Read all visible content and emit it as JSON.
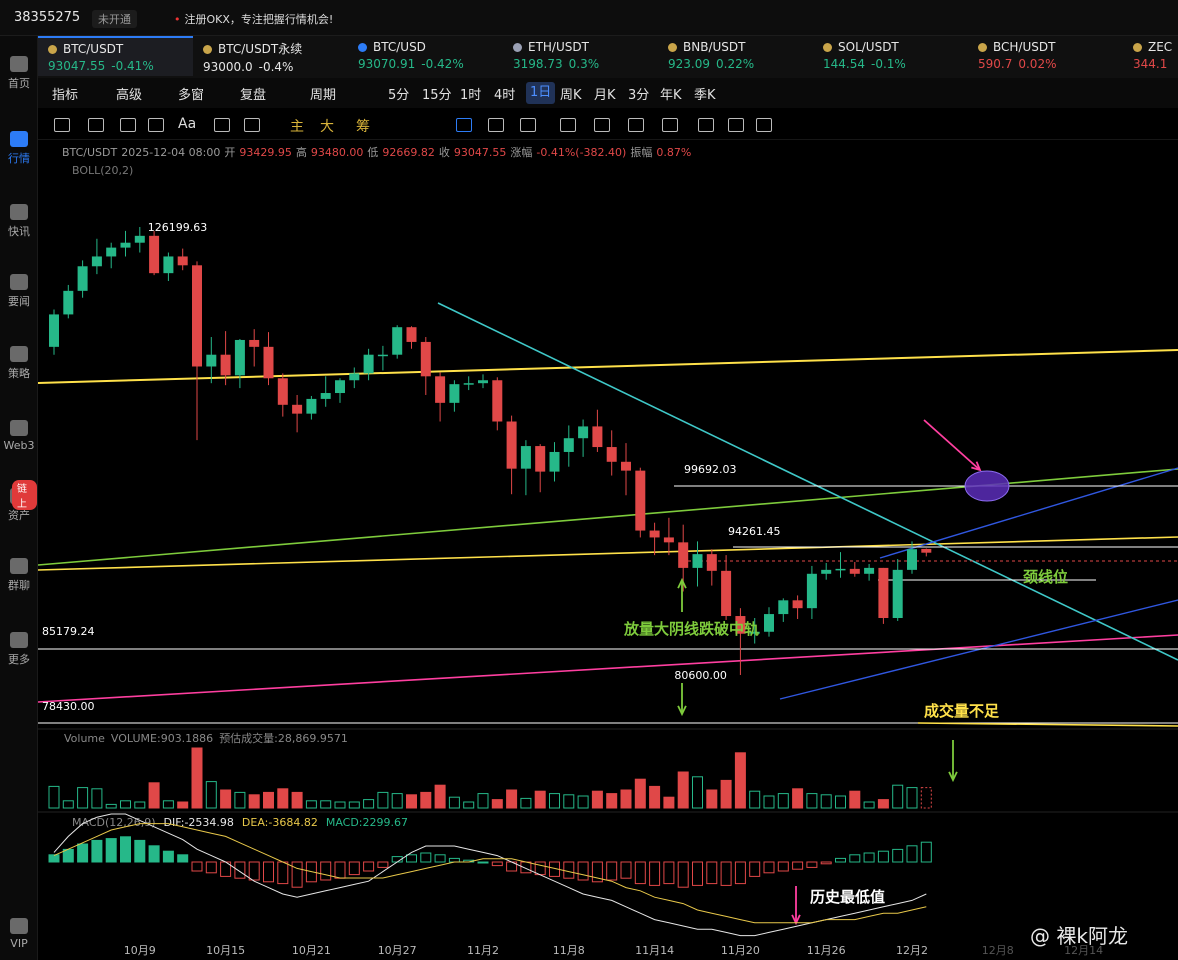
{
  "top": {
    "account": "38355275",
    "vip": "未开通",
    "notice": "注册OKX，专注把握行情机会!"
  },
  "sidebar": [
    {
      "label": "首页",
      "icon": "home-icon"
    },
    {
      "label": "行情",
      "icon": "chart-icon"
    },
    {
      "label": "快讯",
      "icon": "news-icon"
    },
    {
      "label": "要闻",
      "icon": "headline-icon"
    },
    {
      "label": "策略",
      "icon": "robot-icon"
    },
    {
      "label": "Web3",
      "icon": "web3-icon"
    },
    {
      "label": "资产",
      "icon": "wallet-icon"
    },
    {
      "label": "群聊",
      "icon": "chat-icon"
    },
    {
      "label": "更多",
      "icon": "grid-icon"
    },
    {
      "label": "VIP",
      "icon": "vip-icon"
    }
  ],
  "sidebar_badge": "链上",
  "tickers": [
    {
      "name": "BTC/USDT",
      "price": "93047.55",
      "change": "-0.41%",
      "dir": "up"
    },
    {
      "name": "BTC/USDT永续",
      "price": "93000.0",
      "change": "-0.4%",
      "dir": "wt"
    },
    {
      "name": "BTC/USD",
      "price": "93070.91",
      "change": "-0.42%",
      "dir": "up"
    },
    {
      "name": "ETH/USDT",
      "price": "3198.73",
      "change": "0.3%",
      "dir": "up"
    },
    {
      "name": "BNB/USDT",
      "price": "923.09",
      "change": "0.22%",
      "dir": "up"
    },
    {
      "name": "SOL/USDT",
      "price": "144.54",
      "change": "-0.1%",
      "dir": "up"
    },
    {
      "name": "BCH/USDT",
      "price": "590.7",
      "change": "0.02%",
      "dir": "dn"
    },
    {
      "name": "ZEC",
      "price": "344.1",
      "change": "",
      "dir": "dn"
    }
  ],
  "periods": [
    "指标",
    "高级",
    "多窗",
    "复盘",
    "周期",
    "5分",
    "15分",
    "1时",
    "4时",
    "1日",
    "周K",
    "月K",
    "3分",
    "年K",
    "季K"
  ],
  "active_period": "1日",
  "tool_text": [
    "Aa",
    "主",
    "大",
    "筹"
  ],
  "info": {
    "symbol": "BTC/USDT",
    "date": "2025-12-04 08:00",
    "open_label": "开",
    "open": "93429.95",
    "high_label": "高",
    "high": "93480.00",
    "low_label": "低",
    "low": "92669.82",
    "close_label": "收",
    "close": "93047.55",
    "chg_label": "涨幅",
    "chg": "-0.41%(-382.40)",
    "amp_label": "振幅",
    "amp": "0.87%",
    "boll": "BOLL(20,2)"
  },
  "volume_info": {
    "label": "Volume",
    "volume": "VOLUME:903.1886",
    "est": "预估成交量:28,869.9571"
  },
  "macd_info": {
    "label": "MACD(12,26,9)",
    "dif": "DIF:-2534.98",
    "dea": "DEA:-3684.82",
    "macd": "MACD:2299.67"
  },
  "chart_data": {
    "type": "candlestick",
    "title": "BTC/USDT 1日",
    "y_range": [
      75000,
      132000
    ],
    "x_ticks": [
      {
        "label": "10月9",
        "index": 6
      },
      {
        "label": "10月15",
        "index": 12
      },
      {
        "label": "10月21",
        "index": 18
      },
      {
        "label": "10月27",
        "index": 24
      },
      {
        "label": "11月2",
        "index": 30
      },
      {
        "label": "11月8",
        "index": 36
      },
      {
        "label": "11月14",
        "index": 42
      },
      {
        "label": "11月20",
        "index": 48
      },
      {
        "label": "11月26",
        "index": 54
      },
      {
        "label": "12月2",
        "index": 60
      },
      {
        "label": "12月8",
        "index": 66
      },
      {
        "label": "12月14",
        "index": 72
      }
    ],
    "candles": [
      [
        114000,
        117800,
        113200,
        117300
      ],
      [
        117300,
        120300,
        116900,
        119700
      ],
      [
        119700,
        122800,
        119000,
        122200
      ],
      [
        122200,
        125000,
        121400,
        123200
      ],
      [
        123200,
        124600,
        122000,
        124100
      ],
      [
        124100,
        125800,
        123200,
        124600
      ],
      [
        124600,
        126199.63,
        123600,
        125300
      ],
      [
        125300,
        125800,
        121300,
        121500
      ],
      [
        121500,
        123600,
        120700,
        123200
      ],
      [
        123200,
        124000,
        121800,
        122300
      ],
      [
        122300,
        122700,
        104500,
        112000
      ],
      [
        112000,
        115000,
        110300,
        113200
      ],
      [
        113200,
        115600,
        110100,
        111100
      ],
      [
        111100,
        114800,
        109800,
        114700
      ],
      [
        114700,
        115800,
        112000,
        114000
      ],
      [
        114000,
        115500,
        110100,
        110800
      ],
      [
        110800,
        111300,
        106900,
        108100
      ],
      [
        108100,
        109100,
        105300,
        107200
      ],
      [
        107200,
        109000,
        106600,
        108700
      ],
      [
        108700,
        111000,
        107900,
        109300
      ],
      [
        109300,
        110800,
        108300,
        110600
      ],
      [
        110600,
        111900,
        109800,
        111300
      ],
      [
        111300,
        113800,
        110600,
        113200
      ],
      [
        113200,
        114100,
        111600,
        113200
      ],
      [
        113200,
        116200,
        112800,
        116000
      ],
      [
        116000,
        116100,
        113800,
        114500
      ],
      [
        114500,
        115000,
        109100,
        111000
      ],
      [
        111000,
        111400,
        106400,
        108300
      ],
      [
        108300,
        110600,
        107400,
        110200
      ],
      [
        110200,
        111000,
        109600,
        110300
      ],
      [
        110300,
        111200,
        109800,
        110600
      ],
      [
        110600,
        110900,
        105500,
        106400
      ],
      [
        106400,
        107000,
        99000,
        101600
      ],
      [
        101600,
        104500,
        98900,
        103900
      ],
      [
        103900,
        104100,
        99200,
        101300
      ],
      [
        101300,
        104300,
        100300,
        103300
      ],
      [
        103300,
        106000,
        101800,
        104700
      ],
      [
        104700,
        106600,
        102800,
        105900
      ],
      [
        105900,
        107600,
        103300,
        103800
      ],
      [
        103800,
        105500,
        100900,
        102300
      ],
      [
        102300,
        104200,
        98900,
        101400
      ],
      [
        101400,
        101700,
        94600,
        95300
      ],
      [
        95300,
        96100,
        92800,
        94600
      ],
      [
        94600,
        96600,
        92800,
        94100
      ],
      [
        94100,
        95900,
        89100,
        91500
      ],
      [
        91500,
        94200,
        89600,
        92900
      ],
      [
        92900,
        93400,
        89700,
        91200
      ],
      [
        91200,
        92800,
        86200,
        86600
      ],
      [
        86600,
        87400,
        80600.0,
        84800
      ],
      [
        84800,
        86400,
        83800,
        85000
      ],
      [
        85000,
        87500,
        84500,
        86800
      ],
      [
        86800,
        88400,
        86000,
        88200
      ],
      [
        88200,
        88700,
        86300,
        87400
      ],
      [
        87400,
        91700,
        86300,
        90900
      ],
      [
        90900,
        92000,
        90300,
        91300
      ],
      [
        91300,
        93100,
        90500,
        91400
      ],
      [
        91400,
        92100,
        90600,
        90900
      ],
      [
        90900,
        91900,
        90200,
        91500
      ],
      [
        91500,
        91500,
        85800,
        86400
      ],
      [
        86400,
        92400,
        86100,
        91300
      ],
      [
        91300,
        94200,
        90900,
        93400
      ],
      [
        93429.95,
        93480.0,
        92669.82,
        93047.55
      ]
    ],
    "volumes": [
      18,
      6,
      17,
      16,
      3,
      6,
      5,
      21,
      6,
      5,
      50,
      22,
      15,
      13,
      11,
      13,
      16,
      13,
      6,
      6,
      5,
      5,
      7,
      13,
      12,
      11,
      13,
      19,
      9,
      5,
      12,
      7,
      15,
      8,
      14,
      12,
      11,
      10,
      14,
      12,
      15,
      24,
      18,
      9,
      30,
      26,
      15,
      23,
      46,
      14,
      10,
      12,
      16,
      12,
      11,
      10,
      14,
      5,
      7,
      19,
      17,
      17
    ],
    "macd_hist": [
      4,
      7,
      10,
      12,
      13,
      14,
      12,
      9,
      6,
      4,
      -5,
      -6,
      -8,
      -9,
      -10,
      -11,
      -12,
      -14,
      -11,
      -10,
      -9,
      -7,
      -5,
      -3,
      3,
      4,
      5,
      4,
      2,
      1,
      0,
      -2,
      -5,
      -6,
      -7,
      -8,
      -9,
      -10,
      -11,
      -10,
      -9,
      -12,
      -13,
      -12,
      -14,
      -13,
      -12,
      -13,
      -12,
      -8,
      -6,
      -5,
      -4,
      -3,
      -1,
      2,
      4,
      5,
      6,
      7,
      9,
      11
    ],
    "macd_dif": [
      3,
      8,
      12,
      14,
      15,
      15,
      13,
      11,
      9,
      7,
      4,
      2,
      0,
      -3,
      -6,
      -8,
      -10,
      -11,
      -10,
      -9,
      -8,
      -7,
      -6,
      -3,
      0,
      3,
      5,
      5,
      5,
      4,
      3,
      2,
      0,
      -2,
      -4,
      -6,
      -8,
      -10,
      -11,
      -12,
      -14,
      -16,
      -18,
      -19,
      -20,
      -21,
      -21,
      -22,
      -23,
      -23,
      -22,
      -21,
      -20,
      -19,
      -18,
      -17,
      -16,
      -15,
      -14,
      -13,
      -12,
      -10
    ],
    "macd_dea": [
      2,
      4,
      6,
      8,
      10,
      11,
      12,
      12,
      12,
      11,
      10,
      9,
      8,
      6,
      4,
      2,
      0,
      -2,
      -3,
      -4,
      -5,
      -5,
      -5,
      -5,
      -4,
      -3,
      -2,
      -1,
      0,
      0,
      1,
      1,
      1,
      0,
      -1,
      -2,
      -3,
      -4,
      -5,
      -6,
      -8,
      -9,
      -11,
      -12,
      -13,
      -15,
      -16,
      -17,
      -18,
      -19,
      -19,
      -19,
      -19,
      -19,
      -18,
      -18,
      -18,
      -17,
      -16,
      -16,
      -15,
      -14
    ],
    "price_labels": {
      "high": "126199.63",
      "low": "80600.00",
      "left1": "85179.24",
      "left2": "78430.00",
      "level1": "99692.03",
      "level2": "94261.45"
    },
    "levels": [
      126199.63,
      99692.03,
      94261.45,
      85179.24,
      80600.0,
      78430.0
    ],
    "annotations": {
      "breakdown": "放量大阴线跌破中轨",
      "neckline": "颈线位",
      "low_volume": "成交量不足",
      "hist_low": "历史最低值"
    }
  },
  "watermark": "@ 裸k阿龙"
}
